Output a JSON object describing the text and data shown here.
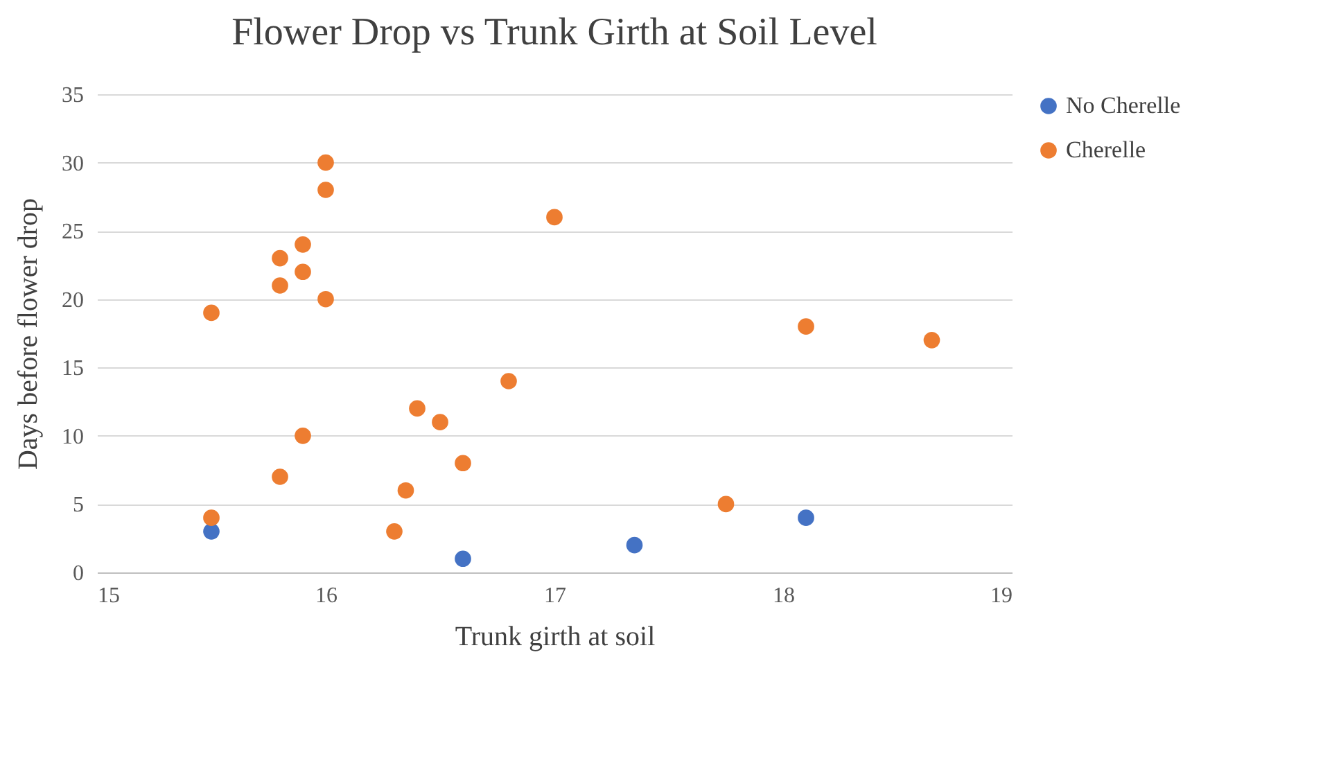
{
  "chart_data": {
    "type": "scatter",
    "title": "Flower Drop vs Trunk Girth at Soil Level",
    "xlabel": "Trunk girth at soil",
    "ylabel": "Days before  flower drop",
    "xlim": [
      15,
      19
    ],
    "xticks": [
      15,
      16,
      17,
      18,
      19
    ],
    "ylim": [
      0,
      35
    ],
    "yticks": [
      0,
      5,
      10,
      15,
      20,
      25,
      30,
      35
    ],
    "grid": "y",
    "legend": "right",
    "marker": "circle",
    "series": [
      {
        "name": "No Cherelle",
        "color": "#4472c4",
        "x": [
          15.5,
          16.6,
          17.35,
          18.1
        ],
        "values": [
          3,
          1,
          2,
          4
        ]
      },
      {
        "name": "Cherelle",
        "color": "#ed7d31",
        "x": [
          15.5,
          15.5,
          15.8,
          15.8,
          15.8,
          15.9,
          15.9,
          15.9,
          16,
          16,
          16,
          16.3,
          16.35,
          16.4,
          16.5,
          16.6,
          16.8,
          17,
          17.75,
          18.1,
          18.65
        ],
        "values": [
          19,
          4,
          23,
          21,
          7,
          24,
          22,
          10,
          30,
          28,
          20,
          3,
          6,
          12,
          11,
          8,
          14,
          26,
          5,
          18,
          17
        ]
      }
    ]
  }
}
